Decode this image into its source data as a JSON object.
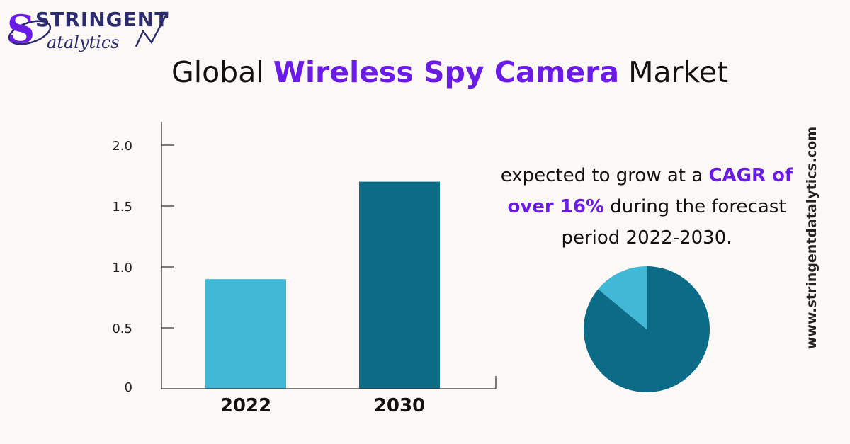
{
  "logo": {
    "line1": "STRINGENT",
    "line2": "atalytics",
    "initial": "S",
    "colors": {
      "purple": "#6a1be6",
      "navy": "#2c2c6c"
    }
  },
  "title": {
    "prefix": "Global ",
    "highlight": "Wireless Spy Camera",
    "suffix": " Market"
  },
  "description": {
    "part1": "expected to grow at a ",
    "highlight": "CAGR of over 16%",
    "part2": " during the forecast period 2022-2030."
  },
  "website": "www.stringentdatalytics.com",
  "chart_data": [
    {
      "type": "bar",
      "categories": [
        "2022",
        "2030"
      ],
      "values": [
        0.9,
        1.7
      ],
      "ylim": [
        0,
        2.2
      ],
      "yticks": [
        0,
        0.5,
        1.0,
        1.5,
        2.0
      ],
      "ytick_labels": [
        "0",
        "0.5",
        "1.0",
        "1.5",
        "2.0"
      ],
      "colors": [
        "#41b8d6",
        "#0c6b87"
      ],
      "grid": false
    },
    {
      "type": "pie",
      "values": [
        86,
        14
      ],
      "colors": [
        "#0c6b87",
        "#41b8d6"
      ]
    }
  ]
}
